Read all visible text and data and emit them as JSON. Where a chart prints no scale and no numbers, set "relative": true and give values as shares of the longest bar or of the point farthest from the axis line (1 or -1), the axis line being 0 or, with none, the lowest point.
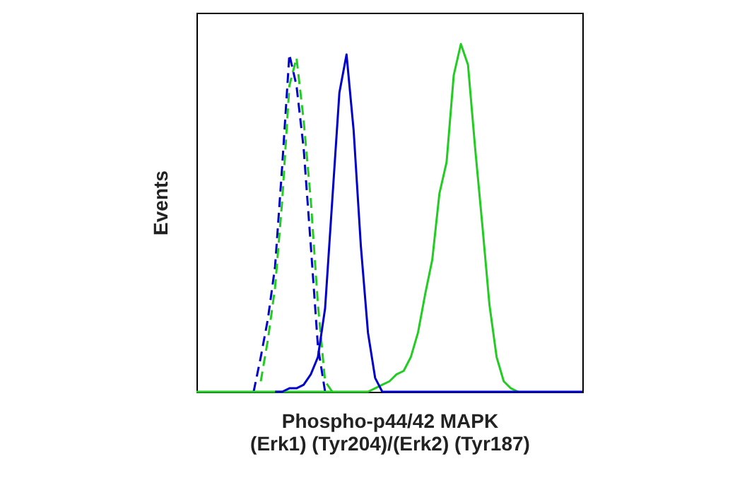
{
  "chart_data": {
    "type": "line",
    "relative": true,
    "xlabel": "Phospho-p44/42 MAPK (Erk1) (Tyr204)/(Erk2) (Tyr187)",
    "ylabel": "Events",
    "marker": "none",
    "categories": [
      null,
      null,
      null,
      null,
      null,
      null,
      null,
      null,
      null,
      null,
      null,
      null,
      null,
      null,
      null,
      null,
      null,
      null,
      null,
      null,
      null,
      null,
      null,
      null,
      null,
      null,
      null,
      null,
      null,
      null,
      null,
      null,
      null,
      null,
      null,
      null,
      null,
      null,
      null,
      null,
      null,
      null,
      null,
      null,
      null,
      null,
      null,
      null,
      null,
      null,
      null,
      null,
      null,
      null,
      null
    ],
    "series": [
      {
        "color": "#0000cc",
        "line_style": "dashed",
        "values": [
          null,
          null,
          null,
          null,
          null,
          null,
          null,
          null,
          0,
          0.1,
          0.21,
          0.36,
          0.65,
          0.97,
          0.88,
          0.7,
          0.42,
          0.13,
          0,
          null,
          null,
          null,
          null,
          null,
          null,
          null,
          null,
          null,
          null,
          null,
          null,
          null,
          null,
          null,
          null,
          null,
          null,
          null,
          null,
          null,
          null,
          null,
          null,
          null,
          null,
          null,
          null,
          null,
          null,
          null,
          null,
          null,
          null,
          null,
          null
        ]
      },
      {
        "color": "#22cc22",
        "line_style": "dashed",
        "values": [
          null,
          null,
          null,
          null,
          null,
          null,
          null,
          null,
          null,
          0.03,
          0.15,
          0.3,
          0.55,
          0.88,
          0.96,
          0.78,
          0.55,
          0.25,
          0.03,
          0,
          null,
          null,
          null,
          null,
          null,
          null,
          null,
          null,
          null,
          null,
          null,
          null,
          null,
          null,
          null,
          null,
          null,
          null,
          null,
          null,
          null,
          null,
          null,
          null,
          null,
          null,
          null,
          null,
          null,
          null,
          null,
          null,
          null,
          null,
          null
        ]
      },
      {
        "color": "#22cc22",
        "line_style": "solid",
        "values": [
          0,
          0,
          0,
          0,
          0,
          0,
          0,
          0,
          0,
          0,
          0,
          0,
          0,
          0,
          0,
          0,
          0,
          0,
          0,
          0,
          0,
          0,
          0,
          0,
          0,
          0.01,
          0.02,
          0.03,
          0.05,
          0.06,
          0.1,
          0.17,
          0.28,
          0.38,
          0.57,
          0.66,
          0.91,
          1,
          0.94,
          0.7,
          0.48,
          0.25,
          0.1,
          0.03,
          0.01,
          0,
          null,
          null,
          null,
          null,
          null,
          null,
          null,
          null,
          null
        ]
      },
      {
        "color": "#0000cc",
        "line_style": "solid",
        "values": [
          null,
          null,
          null,
          null,
          null,
          null,
          null,
          null,
          null,
          null,
          null,
          0,
          0,
          0.01,
          0.01,
          0.02,
          0.05,
          0.1,
          0.24,
          0.55,
          0.86,
          0.97,
          0.75,
          0.42,
          0.17,
          0.04,
          0,
          0,
          0,
          0,
          0,
          0,
          0,
          0,
          0,
          0,
          0,
          0,
          0,
          0,
          0,
          0,
          0,
          0,
          0,
          0,
          0,
          0,
          0,
          0,
          0,
          0,
          0,
          0,
          0
        ]
      }
    ]
  }
}
